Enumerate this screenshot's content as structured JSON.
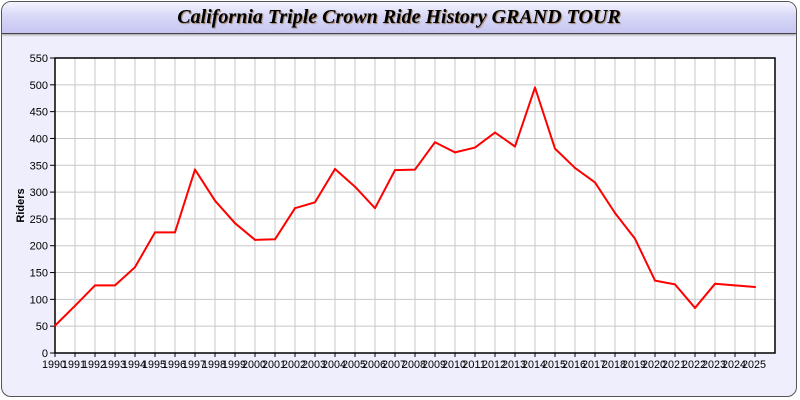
{
  "chart_data": {
    "type": "line",
    "title": "California Triple Crown Ride History GRAND TOUR",
    "xlabel": "",
    "ylabel": "Riders",
    "ylim": [
      0,
      550
    ],
    "yticks": [
      0,
      50,
      100,
      150,
      200,
      250,
      300,
      350,
      400,
      450,
      500,
      550
    ],
    "grid": true,
    "x": [
      1990,
      1991,
      1992,
      1993,
      1994,
      1995,
      1996,
      1997,
      1998,
      1999,
      2000,
      2001,
      2002,
      2003,
      2004,
      2005,
      2006,
      2007,
      2008,
      2009,
      2010,
      2011,
      2012,
      2013,
      2014,
      2015,
      2016,
      2017,
      2018,
      2019,
      2020,
      2021,
      2022,
      2023,
      2024,
      2025
    ],
    "series": [
      {
        "values": [
          51,
          88,
          126,
          126,
          160,
          225,
          225,
          342,
          284,
          242,
          211,
          212,
          270,
          281,
          343,
          310,
          270,
          341,
          342,
          393,
          374,
          383,
          411,
          385,
          495,
          381,
          345,
          318,
          261,
          213,
          135,
          128,
          84,
          129,
          126,
          123
        ],
        "color": "#ff0000"
      }
    ]
  }
}
